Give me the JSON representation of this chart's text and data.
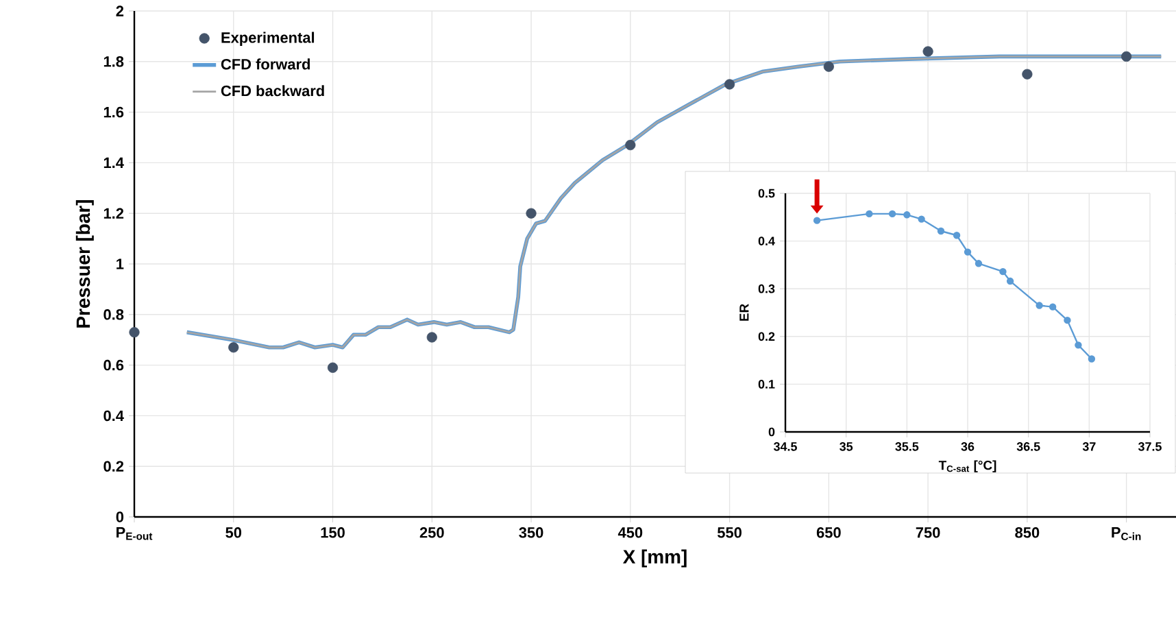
{
  "chart_data": [
    {
      "type": "line",
      "xlabel": "X [mm]",
      "ylabel": "Pressuer [bar]",
      "xlim": [
        -50,
        1000
      ],
      "ylim": [
        0,
        2
      ],
      "xticks": [
        {
          "value": -50,
          "label": "P$_{E-out}$"
        },
        50,
        150,
        250,
        350,
        450,
        550,
        650,
        750,
        850,
        {
          "value": 950,
          "label": "P$_{C-in}$"
        }
      ],
      "yticks": [
        0,
        0.2,
        0.4,
        0.6,
        0.8,
        1,
        1.2,
        1.4,
        1.6,
        1.8,
        2
      ],
      "grid": true,
      "legend": "top left",
      "series": [
        {
          "name": "Experimental",
          "type": "scatter",
          "color": "#44546a",
          "x": [
            -50,
            50,
            150,
            250,
            350,
            450,
            550,
            650,
            750,
            850,
            950
          ],
          "values": [
            0.73,
            0.67,
            0.59,
            0.71,
            1.2,
            1.47,
            1.71,
            1.78,
            1.84,
            1.75,
            1.82
          ]
        },
        {
          "name": "CFD forward",
          "type": "line",
          "color": "#5b9bd5",
          "x": [
            3,
            49,
            86,
            100,
            116,
            132,
            150,
            160,
            171,
            183,
            196,
            208,
            225,
            236,
            252,
            265,
            279,
            293,
            307,
            328,
            332,
            337,
            339,
            346,
            355,
            364,
            380,
            394,
            422,
            447,
            477,
            509,
            546,
            583,
            619,
            661,
            730,
            822,
            939,
            985
          ],
          "values": [
            0.73,
            0.7,
            0.67,
            0.67,
            0.69,
            0.67,
            0.68,
            0.67,
            0.72,
            0.72,
            0.75,
            0.75,
            0.78,
            0.76,
            0.77,
            0.76,
            0.77,
            0.75,
            0.75,
            0.73,
            0.74,
            0.87,
            0.99,
            1.1,
            1.16,
            1.17,
            1.26,
            1.32,
            1.41,
            1.47,
            1.56,
            1.63,
            1.71,
            1.76,
            1.78,
            1.8,
            1.81,
            1.82,
            1.82,
            1.82
          ]
        },
        {
          "name": "CFD backward",
          "type": "line",
          "color": "#a5a5a5",
          "x": [
            3,
            49,
            86,
            100,
            116,
            132,
            150,
            160,
            171,
            183,
            196,
            208,
            225,
            236,
            252,
            265,
            279,
            293,
            307,
            328,
            332,
            337,
            339,
            346,
            355,
            364,
            380,
            394,
            422,
            447,
            477,
            509,
            546,
            583,
            619,
            661,
            730,
            822,
            939,
            985
          ],
          "values": [
            0.73,
            0.7,
            0.67,
            0.67,
            0.69,
            0.67,
            0.68,
            0.67,
            0.72,
            0.72,
            0.75,
            0.75,
            0.78,
            0.76,
            0.77,
            0.76,
            0.77,
            0.75,
            0.75,
            0.73,
            0.74,
            0.87,
            0.99,
            1.1,
            1.16,
            1.17,
            1.26,
            1.32,
            1.41,
            1.47,
            1.56,
            1.63,
            1.71,
            1.76,
            1.78,
            1.8,
            1.81,
            1.82,
            1.82,
            1.82
          ]
        }
      ]
    },
    {
      "type": "line",
      "xlabel": "T$_{C-sat}$ [°C]",
      "ylabel": "ER",
      "xlim": [
        34.5,
        37.5
      ],
      "ylim": [
        0,
        0.5
      ],
      "xticks": [
        34.5,
        35,
        35.5,
        36,
        36.5,
        37,
        37.5
      ],
      "yticks": [
        0,
        0.1,
        0.2,
        0.3,
        0.4,
        0.5
      ],
      "grid": true,
      "marker": "circle",
      "series": [
        {
          "color": "#5b9bd5",
          "x": [
            34.76,
            35.19,
            35.38,
            35.5,
            35.62,
            35.78,
            35.91,
            36.0,
            36.09,
            36.29,
            36.35,
            36.59,
            36.7,
            36.82,
            36.91,
            37.02
          ],
          "values": [
            0.443,
            0.457,
            0.457,
            0.455,
            0.446,
            0.421,
            0.412,
            0.377,
            0.353,
            0.336,
            0.316,
            0.265,
            0.262,
            0.234,
            0.182,
            0.153
          ]
        }
      ]
    }
  ]
}
